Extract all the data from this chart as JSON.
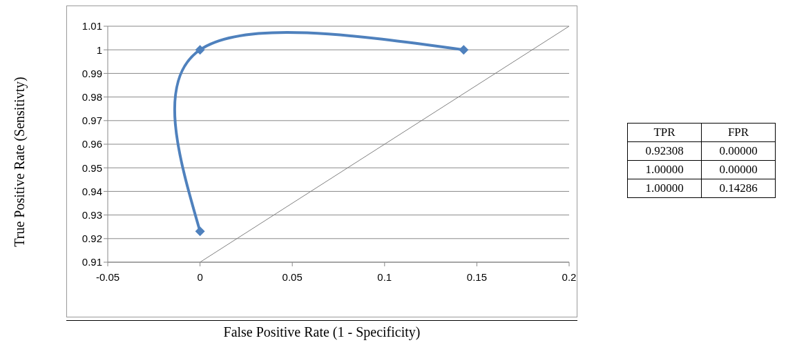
{
  "chart_data": [
    {
      "type": "line",
      "xlabel": "False Positive Rate (1 - Specificity)",
      "ylabel": "True Positive Rate (Sensitivty)",
      "xlim": [
        -0.05,
        0.2
      ],
      "xticks": [
        -0.05,
        0,
        0.05,
        0.1,
        0.15,
        0.2
      ],
      "ylim": [
        0.91,
        1.01
      ],
      "yticks": [
        0.91,
        0.92,
        0.93,
        0.94,
        0.95,
        0.96,
        0.97,
        0.98,
        0.99,
        1,
        1.01
      ],
      "grid": "y",
      "marker": "diamond",
      "line_style": "solid",
      "series": [
        {
          "color": "#4f81bd",
          "x": [
            0,
            0,
            0.14286
          ],
          "values": [
            0.92308,
            1,
            1
          ]
        },
        {
          "color": "#808080",
          "x": [
            0,
            0.2
          ],
          "values": [
            0.91,
            1.01
          ],
          "marker": "none"
        }
      ]
    },
    {
      "type": "other",
      "annotations": [
        "TPR",
        "FPR",
        "0.92308",
        "0.00000",
        "1.00000",
        "0.00000",
        "1.00000",
        "0.14286"
      ]
    }
  ]
}
